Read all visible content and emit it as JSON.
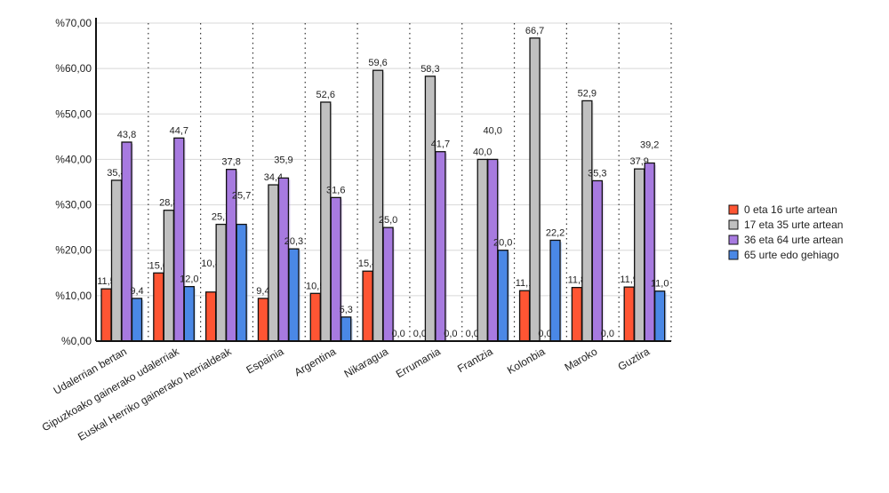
{
  "chart_data": {
    "type": "bar",
    "title": "",
    "xlabel": "",
    "ylabel": "",
    "ylim": [
      0,
      70
    ],
    "yticks": [
      "%0,00",
      "%10,00",
      "%20,00",
      "%30,00",
      "%40,00",
      "%50,00",
      "%60,00",
      "%70,00"
    ],
    "grid": true,
    "legend_position": "right",
    "categories": [
      "Udalerrian bertan",
      "Gipuzkoako gainerako udalerriak",
      "Euskal Herriko gainerako herrialdeak",
      "Espainia",
      "Argentina",
      "Nikaragua",
      "Errumania",
      "Frantzia",
      "Kolonbia",
      "Maroko",
      "Guztira"
    ],
    "series": [
      {
        "name": "0 eta 16 urte artean",
        "color": "#ff5533",
        "values": [
          11.5,
          15.0,
          10.8,
          9.4,
          10.5,
          15.4,
          0.0,
          0.0,
          11.1,
          11.8,
          11.9
        ]
      },
      {
        "name": "17 eta 35 urte artean",
        "color": "#c0c0c0",
        "values": [
          35.4,
          28.8,
          25.7,
          34.4,
          52.6,
          59.6,
          58.3,
          40.0,
          66.7,
          52.9,
          37.9
        ]
      },
      {
        "name": "36 eta 64 urte artean",
        "color": "#a77ae0",
        "values": [
          43.8,
          44.7,
          37.8,
          35.9,
          31.6,
          25.0,
          41.7,
          40.0,
          0.0,
          35.3,
          39.2
        ]
      },
      {
        "name": "65 urte edo gehiago",
        "color": "#4a88e6",
        "values": [
          9.4,
          12.0,
          25.7,
          20.3,
          5.3,
          0.0,
          0.0,
          20.0,
          22.2,
          0.0,
          11.0
        ]
      }
    ]
  }
}
